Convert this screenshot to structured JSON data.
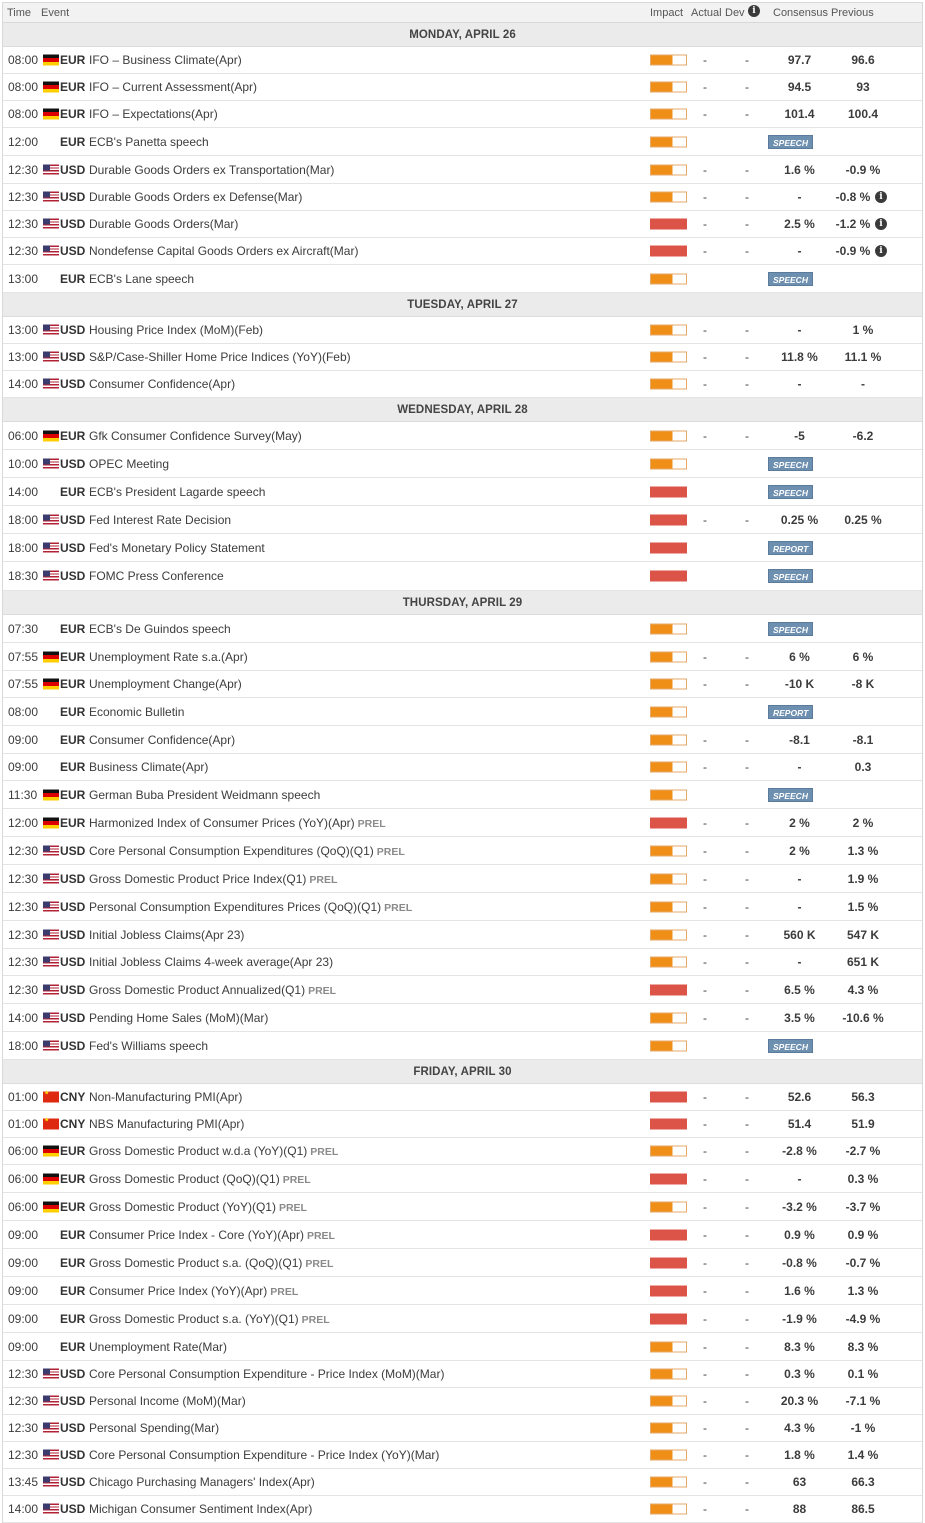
{
  "header": {
    "time": "Time",
    "event": "Event",
    "impact": "Impact",
    "actual": "Actual",
    "dev": "Dev",
    "consensus": "Consensus",
    "previous": "Previous"
  },
  "days": [
    {
      "label": "MONDAY, APRIL 26",
      "events": [
        {
          "time": "08:00",
          "flag": "de",
          "currency": "EUR",
          "name": "IFO – Business Climate(Apr)",
          "impact": "medium",
          "actual": "-",
          "dev": "-",
          "consensus": "97.7",
          "previous": "96.6"
        },
        {
          "time": "08:00",
          "flag": "de",
          "currency": "EUR",
          "name": "IFO – Current Assessment(Apr)",
          "impact": "medium",
          "actual": "-",
          "dev": "-",
          "consensus": "94.5",
          "previous": "93"
        },
        {
          "time": "08:00",
          "flag": "de",
          "currency": "EUR",
          "name": "IFO – Expectations(Apr)",
          "impact": "medium",
          "actual": "-",
          "dev": "-",
          "consensus": "101.4",
          "previous": "100.4"
        },
        {
          "time": "12:00",
          "flag": "eu",
          "currency": "EUR",
          "name": "ECB's Panetta speech",
          "impact": "medium",
          "badge": "SPEECH"
        },
        {
          "time": "12:30",
          "flag": "us",
          "currency": "USD",
          "name": "Durable Goods Orders ex Transportation(Mar)",
          "impact": "medium",
          "actual": "-",
          "dev": "-",
          "consensus": "1.6 %",
          "previous": "-0.9 %"
        },
        {
          "time": "12:30",
          "flag": "us",
          "currency": "USD",
          "name": "Durable Goods Orders ex Defense(Mar)",
          "impact": "medium",
          "actual": "-",
          "dev": "-",
          "consensus": "-",
          "previous": "-0.8 %",
          "info": "i"
        },
        {
          "time": "12:30",
          "flag": "us",
          "currency": "USD",
          "name": "Durable Goods Orders(Mar)",
          "impact": "high",
          "actual": "-",
          "dev": "-",
          "consensus": "2.5 %",
          "previous": "-1.2 %",
          "info": "i"
        },
        {
          "time": "12:30",
          "flag": "us",
          "currency": "USD",
          "name": "Nondefense Capital Goods Orders ex Aircraft(Mar)",
          "impact": "high",
          "actual": "-",
          "dev": "-",
          "consensus": "-",
          "previous": "-0.9 %",
          "info": "i"
        },
        {
          "time": "13:00",
          "flag": "eu",
          "currency": "EUR",
          "name": "ECB's Lane speech",
          "impact": "medium",
          "badge": "SPEECH"
        }
      ]
    },
    {
      "label": "TUESDAY, APRIL 27",
      "events": [
        {
          "time": "13:00",
          "flag": "us",
          "currency": "USD",
          "name": "Housing Price Index (MoM)(Feb)",
          "impact": "medium",
          "actual": "-",
          "dev": "-",
          "consensus": "-",
          "previous": "1 %"
        },
        {
          "time": "13:00",
          "flag": "us",
          "currency": "USD",
          "name": "S&P/Case-Shiller Home Price Indices (YoY)(Feb)",
          "impact": "medium",
          "actual": "-",
          "dev": "-",
          "consensus": "11.8 %",
          "previous": "11.1 %"
        },
        {
          "time": "14:00",
          "flag": "us",
          "currency": "USD",
          "name": "Consumer Confidence(Apr)",
          "impact": "medium",
          "actual": "-",
          "dev": "-",
          "consensus": "-",
          "previous": "-"
        }
      ]
    },
    {
      "label": "WEDNESDAY, APRIL 28",
      "events": [
        {
          "time": "06:00",
          "flag": "de",
          "currency": "EUR",
          "name": "Gfk Consumer Confidence Survey(May)",
          "impact": "medium",
          "actual": "-",
          "dev": "-",
          "consensus": "-5",
          "previous": "-6.2"
        },
        {
          "time": "10:00",
          "flag": "us",
          "currency": "USD",
          "name": "OPEC Meeting",
          "impact": "medium",
          "badge": "SPEECH"
        },
        {
          "time": "14:00",
          "flag": "eu",
          "currency": "EUR",
          "name": "ECB's President Lagarde speech",
          "impact": "high",
          "badge": "SPEECH"
        },
        {
          "time": "18:00",
          "flag": "us",
          "currency": "USD",
          "name": "Fed Interest Rate Decision",
          "impact": "high",
          "actual": "-",
          "dev": "-",
          "consensus": "0.25 %",
          "previous": "0.25 %"
        },
        {
          "time": "18:00",
          "flag": "us",
          "currency": "USD",
          "name": "Fed's Monetary Policy Statement",
          "impact": "high",
          "badge": "REPORT"
        },
        {
          "time": "18:30",
          "flag": "us",
          "currency": "USD",
          "name": "FOMC Press Conference",
          "impact": "high",
          "badge": "SPEECH"
        }
      ]
    },
    {
      "label": "THURSDAY, APRIL 29",
      "events": [
        {
          "time": "07:30",
          "flag": "eu",
          "currency": "EUR",
          "name": "ECB's De Guindos speech",
          "impact": "medium",
          "badge": "SPEECH"
        },
        {
          "time": "07:55",
          "flag": "de",
          "currency": "EUR",
          "name": "Unemployment Rate s.a.(Apr)",
          "impact": "medium",
          "actual": "-",
          "dev": "-",
          "consensus": "6 %",
          "previous": "6 %"
        },
        {
          "time": "07:55",
          "flag": "de",
          "currency": "EUR",
          "name": "Unemployment Change(Apr)",
          "impact": "medium",
          "actual": "-",
          "dev": "-",
          "consensus": "-10 K",
          "previous": "-8 K"
        },
        {
          "time": "08:00",
          "flag": "eu",
          "currency": "EUR",
          "name": "Economic Bulletin",
          "impact": "medium",
          "badge": "REPORT"
        },
        {
          "time": "09:00",
          "flag": "eu",
          "currency": "EUR",
          "name": "Consumer Confidence(Apr)",
          "impact": "medium",
          "actual": "-",
          "dev": "-",
          "consensus": "-8.1",
          "previous": "-8.1"
        },
        {
          "time": "09:00",
          "flag": "eu",
          "currency": "EUR",
          "name": "Business Climate(Apr)",
          "impact": "medium",
          "actual": "-",
          "dev": "-",
          "consensus": "-",
          "previous": "0.3"
        },
        {
          "time": "11:30",
          "flag": "de",
          "currency": "EUR",
          "name": "German Buba President Weidmann speech",
          "impact": "medium",
          "badge": "SPEECH"
        },
        {
          "time": "12:00",
          "flag": "de",
          "currency": "EUR",
          "name": "Harmonized Index of Consumer Prices (YoY)(Apr)",
          "prel": "PREL",
          "impact": "high",
          "actual": "-",
          "dev": "-",
          "consensus": "2 %",
          "previous": "2 %"
        },
        {
          "time": "12:30",
          "flag": "us",
          "currency": "USD",
          "name": "Core Personal Consumption Expenditures (QoQ)(Q1)",
          "prel": "PREL",
          "impact": "medium",
          "actual": "-",
          "dev": "-",
          "consensus": "2 %",
          "previous": "1.3 %"
        },
        {
          "time": "12:30",
          "flag": "us",
          "currency": "USD",
          "name": "Gross Domestic Product Price Index(Q1)",
          "prel": "PREL",
          "impact": "medium",
          "actual": "-",
          "dev": "-",
          "consensus": "-",
          "previous": "1.9 %"
        },
        {
          "time": "12:30",
          "flag": "us",
          "currency": "USD",
          "name": "Personal Consumption Expenditures Prices (QoQ)(Q1)",
          "prel": "PREL",
          "impact": "medium",
          "actual": "-",
          "dev": "-",
          "consensus": "-",
          "previous": "1.5 %"
        },
        {
          "time": "12:30",
          "flag": "us",
          "currency": "USD",
          "name": "Initial Jobless Claims(Apr 23)",
          "impact": "medium",
          "actual": "-",
          "dev": "-",
          "consensus": "560 K",
          "previous": "547 K"
        },
        {
          "time": "12:30",
          "flag": "us",
          "currency": "USD",
          "name": "Initial Jobless Claims 4-week average(Apr 23)",
          "impact": "medium",
          "actual": "-",
          "dev": "-",
          "consensus": "-",
          "previous": "651 K"
        },
        {
          "time": "12:30",
          "flag": "us",
          "currency": "USD",
          "name": "Gross Domestic Product Annualized(Q1)",
          "prel": "PREL",
          "impact": "high",
          "actual": "-",
          "dev": "-",
          "consensus": "6.5 %",
          "previous": "4.3 %"
        },
        {
          "time": "14:00",
          "flag": "us",
          "currency": "USD",
          "name": "Pending Home Sales (MoM)(Mar)",
          "impact": "medium",
          "actual": "-",
          "dev": "-",
          "consensus": "3.5 %",
          "previous": "-10.6 %"
        },
        {
          "time": "18:00",
          "flag": "us",
          "currency": "USD",
          "name": "Fed's Williams speech",
          "impact": "medium",
          "badge": "SPEECH"
        }
      ]
    },
    {
      "label": "FRIDAY, APRIL 30",
      "events": [
        {
          "time": "01:00",
          "flag": "cn",
          "currency": "CNY",
          "name": "Non-Manufacturing PMI(Apr)",
          "impact": "high",
          "actual": "-",
          "dev": "-",
          "consensus": "52.6",
          "previous": "56.3"
        },
        {
          "time": "01:00",
          "flag": "cn",
          "currency": "CNY",
          "name": "NBS Manufacturing PMI(Apr)",
          "impact": "high",
          "actual": "-",
          "dev": "-",
          "consensus": "51.4",
          "previous": "51.9"
        },
        {
          "time": "06:00",
          "flag": "de",
          "currency": "EUR",
          "name": "Gross Domestic Product w.d.a (YoY)(Q1)",
          "prel": "PREL",
          "impact": "medium",
          "actual": "-",
          "dev": "-",
          "consensus": "-2.8 %",
          "previous": "-2.7 %"
        },
        {
          "time": "06:00",
          "flag": "de",
          "currency": "EUR",
          "name": "Gross Domestic Product (QoQ)(Q1)",
          "prel": "PREL",
          "impact": "high",
          "actual": "-",
          "dev": "-",
          "consensus": "-",
          "previous": "0.3 %"
        },
        {
          "time": "06:00",
          "flag": "de",
          "currency": "EUR",
          "name": "Gross Domestic Product (YoY)(Q1)",
          "prel": "PREL",
          "impact": "medium",
          "actual": "-",
          "dev": "-",
          "consensus": "-3.2 %",
          "previous": "-3.7 %"
        },
        {
          "time": "09:00",
          "flag": "eu",
          "currency": "EUR",
          "name": "Consumer Price Index - Core (YoY)(Apr)",
          "prel": "PREL",
          "impact": "high",
          "actual": "-",
          "dev": "-",
          "consensus": "0.9 %",
          "previous": "0.9 %"
        },
        {
          "time": "09:00",
          "flag": "eu",
          "currency": "EUR",
          "name": "Gross Domestic Product s.a. (QoQ)(Q1)",
          "prel": "PREL",
          "impact": "high",
          "actual": "-",
          "dev": "-",
          "consensus": "-0.8 %",
          "previous": "-0.7 %"
        },
        {
          "time": "09:00",
          "flag": "eu",
          "currency": "EUR",
          "name": "Consumer Price Index (YoY)(Apr)",
          "prel": "PREL",
          "impact": "high",
          "actual": "-",
          "dev": "-",
          "consensus": "1.6 %",
          "previous": "1.3 %"
        },
        {
          "time": "09:00",
          "flag": "eu",
          "currency": "EUR",
          "name": "Gross Domestic Product s.a. (YoY)(Q1)",
          "prel": "PREL",
          "impact": "high",
          "actual": "-",
          "dev": "-",
          "consensus": "-1.9 %",
          "previous": "-4.9 %"
        },
        {
          "time": "09:00",
          "flag": "eu",
          "currency": "EUR",
          "name": "Unemployment Rate(Mar)",
          "impact": "medium",
          "actual": "-",
          "dev": "-",
          "consensus": "8.3 %",
          "previous": "8.3 %"
        },
        {
          "time": "12:30",
          "flag": "us",
          "currency": "USD",
          "name": "Core Personal Consumption Expenditure - Price Index (MoM)(Mar)",
          "impact": "medium",
          "actual": "-",
          "dev": "-",
          "consensus": "0.3 %",
          "previous": "0.1 %"
        },
        {
          "time": "12:30",
          "flag": "us",
          "currency": "USD",
          "name": "Personal Income (MoM)(Mar)",
          "impact": "medium",
          "actual": "-",
          "dev": "-",
          "consensus": "20.3 %",
          "previous": "-7.1 %"
        },
        {
          "time": "12:30",
          "flag": "us",
          "currency": "USD",
          "name": "Personal Spending(Mar)",
          "impact": "medium",
          "actual": "-",
          "dev": "-",
          "consensus": "4.3 %",
          "previous": "-1 %"
        },
        {
          "time": "12:30",
          "flag": "us",
          "currency": "USD",
          "name": "Core Personal Consumption Expenditure - Price Index (YoY)(Mar)",
          "impact": "medium",
          "actual": "-",
          "dev": "-",
          "consensus": "1.8 %",
          "previous": "1.4 %"
        },
        {
          "time": "13:45",
          "flag": "us",
          "currency": "USD",
          "name": "Chicago Purchasing Managers' Index(Apr)",
          "impact": "medium",
          "actual": "-",
          "dev": "-",
          "consensus": "63",
          "previous": "66.3"
        },
        {
          "time": "14:00",
          "flag": "us",
          "currency": "USD",
          "name": "Michigan Consumer Sentiment Index(Apr)",
          "impact": "medium",
          "actual": "-",
          "dev": "-",
          "consensus": "88",
          "previous": "86.5"
        }
      ]
    }
  ],
  "colors": {
    "impact_medium": "#f08f17",
    "impact_high": "#dc5448",
    "badge": "#6d8fb0",
    "day_header": "#ebebeb"
  }
}
